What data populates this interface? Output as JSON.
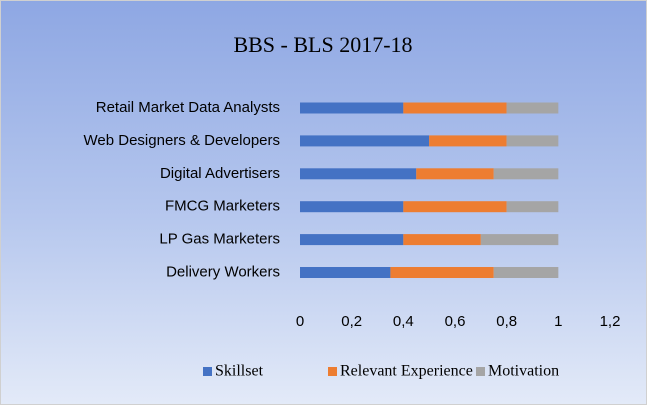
{
  "chart_data": {
    "type": "stacked-bar-horizontal",
    "title": "BBS - BLS 2017-18",
    "categories": [
      "Retail Market Data Analysts",
      "Web Designers & Developers",
      "Digital Advertisers",
      "FMCG Marketers",
      "LP Gas Marketers",
      "Delivery Workers"
    ],
    "series": [
      {
        "name": "Skillset",
        "color": "#4472c4",
        "values": [
          0.4,
          0.5,
          0.45,
          0.4,
          0.4,
          0.35
        ]
      },
      {
        "name": "Relevant Experience",
        "color": "#ed7d31",
        "values": [
          0.4,
          0.3,
          0.3,
          0.4,
          0.3,
          0.4
        ]
      },
      {
        "name": "Motivation",
        "color": "#a5a5a5",
        "values": [
          0.2,
          0.2,
          0.25,
          0.2,
          0.3,
          0.25
        ]
      }
    ],
    "xlim": [
      0,
      1.2
    ],
    "xticks": [
      0,
      {
        "value": 0.2,
        "label": "0,2"
      },
      {
        "value": 0.4,
        "label": "0,4"
      },
      {
        "value": 0.6,
        "label": "0,6"
      },
      {
        "value": 0.8,
        "label": "0,8"
      },
      1,
      {
        "value": 1.2,
        "label": "1,2"
      }
    ],
    "legend": "bottom"
  }
}
